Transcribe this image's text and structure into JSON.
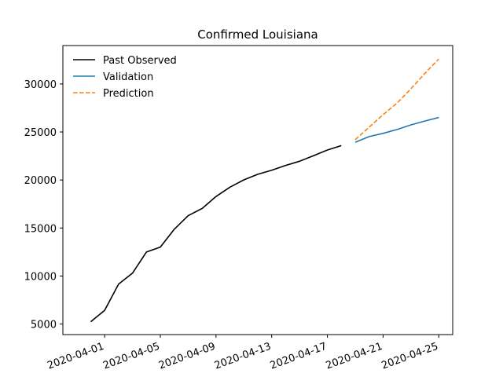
{
  "chart_data": {
    "type": "line",
    "title": "Confirmed Louisiana",
    "xlabel": "",
    "ylabel": "",
    "x_type": "date",
    "xlim": [
      "2020-03-29",
      "2020-04-26"
    ],
    "ylim": [
      3900,
      34000
    ],
    "x_ticks": [
      "2020-04-01",
      "2020-04-05",
      "2020-04-09",
      "2020-04-13",
      "2020-04-17",
      "2020-04-21",
      "2020-04-25"
    ],
    "y_ticks": [
      5000,
      10000,
      15000,
      20000,
      25000,
      30000
    ],
    "y_tick_labels": [
      "5000",
      "10000",
      "15000",
      "20000",
      "25000",
      "30000"
    ],
    "legend_position": "top-left",
    "grid": false,
    "series": [
      {
        "name": "Past Observed",
        "color": "#000000",
        "style": "solid",
        "points": [
          [
            "2020-03-31",
            5237
          ],
          [
            "2020-04-01",
            6424
          ],
          [
            "2020-04-02",
            9150
          ],
          [
            "2020-04-03",
            10297
          ],
          [
            "2020-04-04",
            12496
          ],
          [
            "2020-04-05",
            13010
          ],
          [
            "2020-04-06",
            14867
          ],
          [
            "2020-04-07",
            16284
          ],
          [
            "2020-04-08",
            17030
          ],
          [
            "2020-04-09",
            18283
          ],
          [
            "2020-04-10",
            19253
          ],
          [
            "2020-04-11",
            20014
          ],
          [
            "2020-04-12",
            20595
          ],
          [
            "2020-04-13",
            21016
          ],
          [
            "2020-04-14",
            21518
          ],
          [
            "2020-04-15",
            21951
          ],
          [
            "2020-04-16",
            22532
          ],
          [
            "2020-04-17",
            23118
          ],
          [
            "2020-04-18",
            23580
          ]
        ]
      },
      {
        "name": "Validation",
        "color": "#1f77b4",
        "style": "solid",
        "points": [
          [
            "2020-04-19",
            23928
          ],
          [
            "2020-04-20",
            24523
          ],
          [
            "2020-04-21",
            24854
          ],
          [
            "2020-04-22",
            25258
          ],
          [
            "2020-04-23",
            25739
          ],
          [
            "2020-04-24",
            26140
          ],
          [
            "2020-04-25",
            26512
          ]
        ]
      },
      {
        "name": "Prediction",
        "color": "#ff7f0e",
        "style": "dashed",
        "points": [
          [
            "2020-04-19",
            24200
          ],
          [
            "2020-04-20",
            25500
          ],
          [
            "2020-04-21",
            26800
          ],
          [
            "2020-04-22",
            28000
          ],
          [
            "2020-04-23",
            29500
          ],
          [
            "2020-04-24",
            31100
          ],
          [
            "2020-04-25",
            32600
          ]
        ]
      }
    ]
  }
}
